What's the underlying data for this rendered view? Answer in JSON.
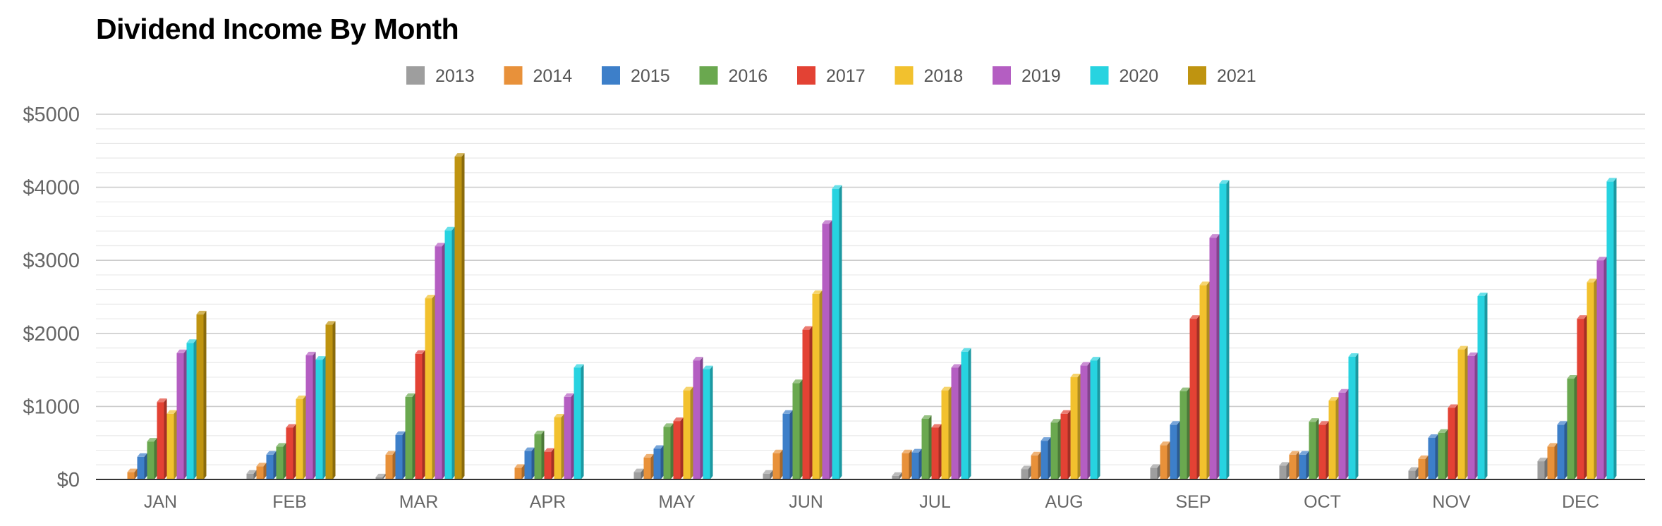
{
  "chart_data": {
    "type": "bar",
    "title": "Dividend Income By Month",
    "xlabel": "",
    "ylabel": "",
    "ylim": [
      0,
      5000
    ],
    "y_ticks": [
      "$0",
      "$1000",
      "$2000",
      "$3000",
      "$4000",
      "$5000"
    ],
    "y_tick_values": [
      0,
      1000,
      2000,
      3000,
      4000,
      5000
    ],
    "grid": true,
    "legend_position": "top",
    "categories": [
      "JAN",
      "FEB",
      "MAR",
      "APR",
      "MAY",
      "JUN",
      "JUL",
      "AUG",
      "SEP",
      "OCT",
      "NOV",
      "DEC"
    ],
    "series": [
      {
        "name": "2013",
        "color": "#9e9e9e",
        "values": [
          0,
          80,
          30,
          0,
          100,
          80,
          50,
          140,
          160,
          190,
          120,
          250
        ]
      },
      {
        "name": "2014",
        "color": "#e8913a",
        "values": [
          100,
          180,
          340,
          160,
          300,
          360,
          360,
          330,
          470,
          340,
          280,
          450
        ]
      },
      {
        "name": "2015",
        "color": "#3d7fc9",
        "values": [
          310,
          340,
          610,
          390,
          420,
          900,
          370,
          530,
          750,
          340,
          570,
          750
        ]
      },
      {
        "name": "2016",
        "color": "#6aa84f",
        "values": [
          520,
          450,
          1130,
          620,
          720,
          1320,
          830,
          780,
          1210,
          790,
          640,
          1380
        ]
      },
      {
        "name": "2017",
        "color": "#e34234",
        "values": [
          1060,
          710,
          1720,
          380,
          800,
          2050,
          710,
          900,
          2200,
          750,
          980,
          2200
        ]
      },
      {
        "name": "2018",
        "color": "#f2c12e",
        "values": [
          900,
          1100,
          2480,
          850,
          1220,
          2540,
          1220,
          1400,
          2660,
          1080,
          1780,
          2700
        ]
      },
      {
        "name": "2019",
        "color": "#b45ec2",
        "values": [
          1730,
          1700,
          3190,
          1130,
          1630,
          3500,
          1530,
          1560,
          3310,
          1190,
          1690,
          3000
        ]
      },
      {
        "name": "2020",
        "color": "#27d3e0",
        "values": [
          1870,
          1640,
          3410,
          1530,
          1510,
          3980,
          1750,
          1630,
          4050,
          1680,
          2510,
          4080
        ]
      },
      {
        "name": "2021",
        "color": "#bf9410",
        "values": [
          2260,
          2120,
          4420,
          0,
          0,
          0,
          0,
          0,
          0,
          0,
          0,
          0
        ]
      }
    ]
  }
}
